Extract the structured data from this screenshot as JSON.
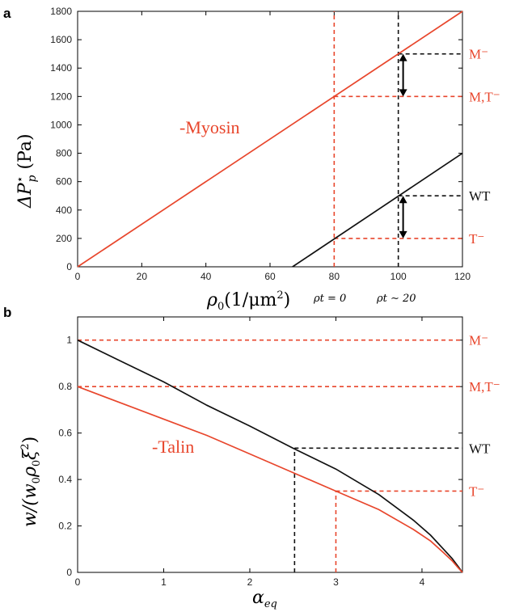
{
  "colors": {
    "red": "#e8462c",
    "black": "#111111"
  },
  "chart_data": [
    {
      "panel": "a",
      "type": "line",
      "xlabel": "ρ0(1/μm2)",
      "ylabel": "ΔP⋆p (Pa)",
      "xlim": [
        0,
        120
      ],
      "ylim": [
        0,
        1800
      ],
      "xticks": [
        0,
        20,
        40,
        60,
        80,
        100,
        120
      ],
      "yticks": [
        0,
        200,
        400,
        600,
        800,
        1000,
        1200,
        1400,
        1600,
        1800
      ],
      "series": [
        {
          "name": "-Myosin",
          "color": "#e8462c",
          "x": [
            0,
            120
          ],
          "y": [
            0,
            1800
          ]
        },
        {
          "color": "#111111",
          "x": [
            67,
            120
          ],
          "y": [
            0,
            800
          ]
        }
      ],
      "vlines": [
        {
          "x": 80,
          "color": "#e8462c",
          "label": "ρt = 0"
        },
        {
          "x": 100,
          "color": "#111111",
          "label": "ρt ∼ 20"
        }
      ],
      "hlines": [
        {
          "y": 1500,
          "x0": 100,
          "color": "#111111",
          "label": "M⁻",
          "label_color": "#e8462c"
        },
        {
          "y": 1200,
          "x0": 80,
          "color": "#e8462c",
          "label": "M,T⁻",
          "label_color": "#e8462c"
        },
        {
          "y": 500,
          "x0": 100,
          "color": "#111111",
          "label": "WT",
          "label_color": "#111111"
        },
        {
          "y": 200,
          "x0": 80,
          "color": "#e8462c",
          "label": "T⁻",
          "label_color": "#e8462c"
        }
      ],
      "arrows": [
        {
          "x": 101.5,
          "y_from": 1200,
          "y_to": 1500
        },
        {
          "x": 101.5,
          "y_from": 200,
          "y_to": 500
        }
      ]
    },
    {
      "panel": "b",
      "type": "line",
      "xlabel": "αeq",
      "ylabel": "w/(w0ρ0ξ2)",
      "xlim": [
        0,
        4.47
      ],
      "ylim": [
        0,
        1.1
      ],
      "xticks": [
        0,
        1,
        2,
        3,
        4
      ],
      "yticks": [
        0,
        0.2,
        0.4,
        0.6,
        0.8,
        1
      ],
      "series": [
        {
          "color": "#111111",
          "x": [
            0,
            0.5,
            1,
            1.5,
            2,
            2.5,
            3,
            3.5,
            3.9,
            4.1,
            4.25,
            4.35,
            4.42,
            4.47
          ],
          "y": [
            1.0,
            0.91,
            0.82,
            0.72,
            0.63,
            0.535,
            0.445,
            0.335,
            0.225,
            0.16,
            0.1,
            0.06,
            0.025,
            0
          ]
        },
        {
          "name": "-Talin",
          "color": "#e8462c",
          "x": [
            0,
            0.5,
            1,
            1.5,
            2,
            2.5,
            3,
            3.5,
            3.9,
            4.1,
            4.25,
            4.35,
            4.42,
            4.47
          ],
          "y": [
            0.8,
            0.73,
            0.66,
            0.59,
            0.51,
            0.43,
            0.35,
            0.27,
            0.185,
            0.135,
            0.085,
            0.05,
            0.02,
            0
          ]
        }
      ],
      "vlines": [
        {
          "x": 2.52,
          "y1": 0.535,
          "color": "#111111"
        },
        {
          "x": 3.0,
          "y1": 0.35,
          "color": "#e8462c"
        }
      ],
      "hlines": [
        {
          "y": 1.0,
          "x0": 0,
          "color": "#e8462c",
          "label": "M⁻",
          "label_color": "#e8462c"
        },
        {
          "y": 0.8,
          "x0": 0,
          "color": "#e8462c",
          "label": "M,T⁻",
          "label_color": "#e8462c"
        },
        {
          "y": 0.535,
          "x0": 2.52,
          "color": "#111111",
          "label": "WT",
          "label_color": "#111111"
        },
        {
          "y": 0.35,
          "x0": 3.0,
          "color": "#e8462c",
          "label": "T⁻",
          "label_color": "#e8462c"
        }
      ]
    }
  ],
  "panel_a": {
    "letter": "a",
    "annotation": "-Myosin",
    "xlabel_main": "ρ",
    "xlabel_sub": "0",
    "xlabel_rest": "(1/μm",
    "xlabel_sup": "2",
    "xlabel_close": ")",
    "ylabel_main": "ΔP",
    "ylabel_sup": "⋆",
    "ylabel_sub": "p",
    "ylabel_unit": " (Pa)",
    "note1": "ρt = 0",
    "note2": "ρt ∼ 20"
  },
  "panel_b": {
    "letter": "b",
    "annotation": "-Talin",
    "xlabel_main": "α",
    "xlabel_sub": "eq",
    "ylabel_text": "w/(w",
    "ylabel_sub0": "0",
    "ylabel_rho": "ρ",
    "ylabel_sub1": "0",
    "ylabel_xi": "ξ",
    "ylabel_sup": "2",
    "ylabel_close": ")"
  }
}
